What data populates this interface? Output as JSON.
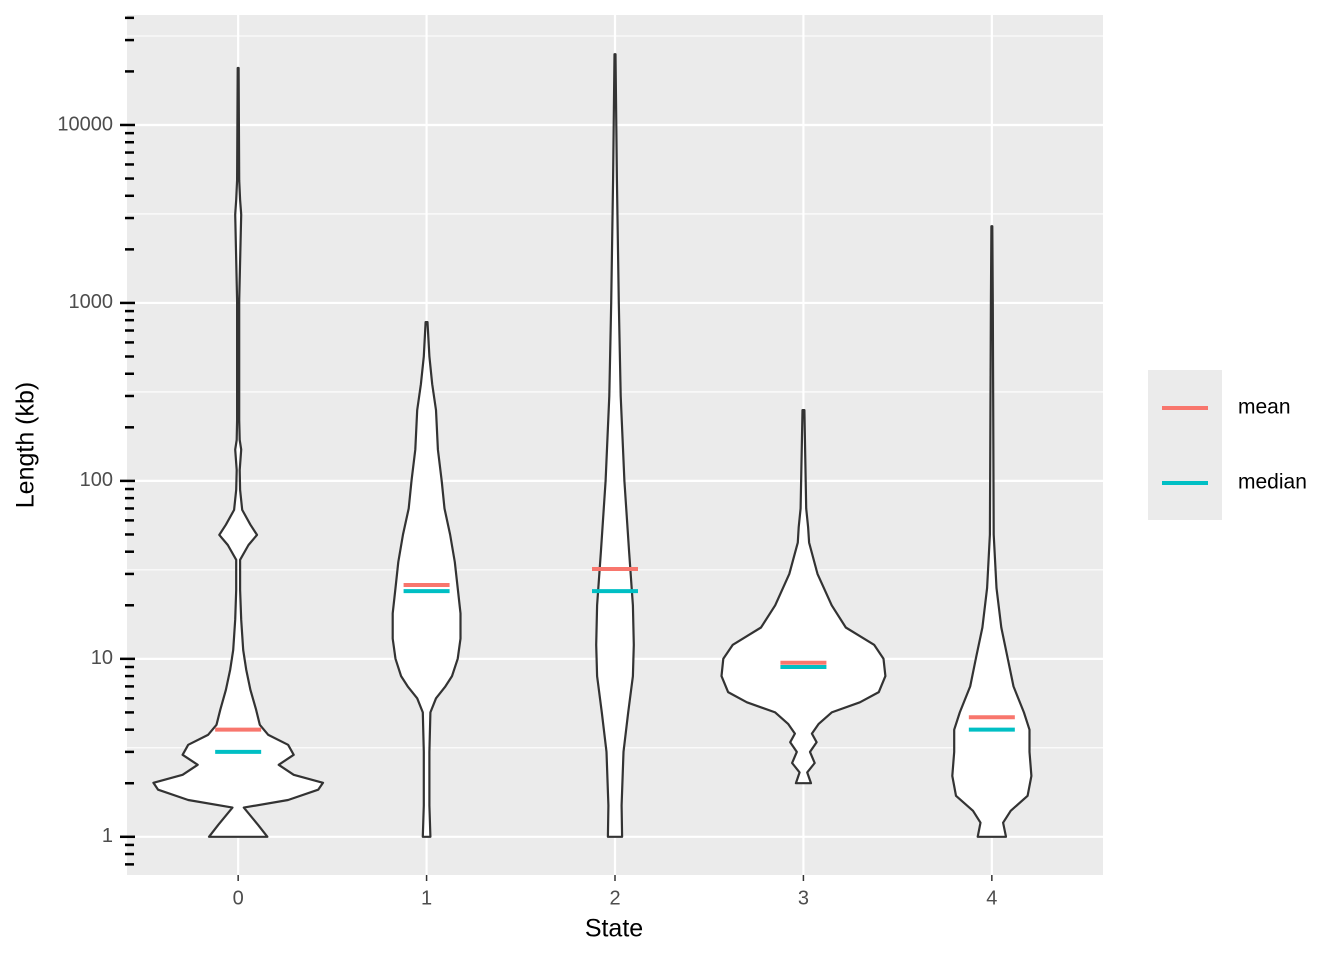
{
  "chart_data": {
    "type": "violin",
    "x_label": "State",
    "y_label": "Length (kb)",
    "log_y": true,
    "grid": true,
    "legend_position": "right",
    "ylim": [
      0.61,
      41500
    ],
    "yticks": [
      1,
      10,
      100,
      1000,
      10000
    ],
    "minor_yticks": [
      0.7,
      0.8,
      0.9,
      2,
      3,
      4,
      5,
      6,
      7,
      8,
      9,
      20,
      30,
      40,
      50,
      60,
      70,
      80,
      90,
      200,
      300,
      400,
      500,
      600,
      700,
      800,
      900,
      2000,
      3000,
      4000,
      5000,
      6000,
      7000,
      8000,
      9000,
      20000,
      30000,
      40000
    ],
    "categories": [
      "0",
      "1",
      "2",
      "3",
      "4"
    ],
    "legend": [
      {
        "name": "mean",
        "color": "#f8766d"
      },
      {
        "name": "median",
        "color": "#00bfc4"
      }
    ],
    "violins": [
      {
        "values": [
          1,
          1.17,
          1.46,
          1.61,
          1.84,
          2.01,
          2.23,
          2.54,
          2.89,
          3.29,
          3.74,
          4.26,
          5.18,
          6.7,
          8.7,
          11.2,
          16.6,
          24.4,
          36,
          43.6,
          49.7,
          56.7,
          68.7,
          89,
          115,
          150,
          170,
          220,
          1030,
          3140,
          3800,
          4900,
          20900
        ],
        "widths": [
          0.31,
          0.21,
          0.06,
          0.53,
          0.85,
          0.9,
          0.59,
          0.43,
          0.59,
          0.53,
          0.32,
          0.23,
          0.19,
          0.13,
          0.085,
          0.053,
          0.032,
          0.021,
          0.021,
          0.11,
          0.2,
          0.13,
          0.043,
          0.021,
          0.016,
          0.032,
          0.016,
          0.011,
          0.011,
          0.032,
          0.021,
          0.011,
          0.005
        ],
        "mean": 4.0,
        "median": 3.0
      },
      {
        "values": [
          1,
          1.5,
          3,
          5,
          6,
          7,
          8,
          10,
          13,
          18,
          25,
          35,
          50,
          70,
          100,
          150,
          250,
          350,
          500,
          780
        ],
        "widths": [
          0.04,
          0.03,
          0.03,
          0.04,
          0.1,
          0.2,
          0.27,
          0.33,
          0.36,
          0.36,
          0.33,
          0.3,
          0.25,
          0.19,
          0.16,
          0.12,
          0.1,
          0.06,
          0.03,
          0.01
        ],
        "mean": 26,
        "median": 24
      },
      {
        "values": [
          1,
          1.5,
          3,
          5,
          8,
          12,
          20,
          40,
          100,
          300,
          1000,
          5000,
          25000
        ],
        "widths": [
          0.075,
          0.07,
          0.09,
          0.14,
          0.19,
          0.2,
          0.19,
          0.15,
          0.1,
          0.06,
          0.04,
          0.02,
          0.005
        ],
        "mean": 32,
        "median": 24
      },
      {
        "values": [
          2.0,
          2.3,
          2.6,
          3.0,
          3.4,
          3.8,
          4.3,
          5,
          5.7,
          6.5,
          8,
          10,
          12,
          15,
          20,
          30,
          45,
          55,
          70,
          250
        ],
        "widths": [
          0.08,
          0.04,
          0.12,
          0.07,
          0.14,
          0.09,
          0.16,
          0.3,
          0.6,
          0.8,
          0.87,
          0.85,
          0.75,
          0.45,
          0.3,
          0.15,
          0.06,
          0.05,
          0.03,
          0.01
        ],
        "mean": 9.5,
        "median": 9.0
      },
      {
        "values": [
          1,
          1.2,
          1.4,
          1.7,
          2.2,
          3,
          4,
          5,
          7,
          10,
          15,
          25,
          50,
          1000,
          2700
        ],
        "widths": [
          0.15,
          0.12,
          0.2,
          0.38,
          0.42,
          0.4,
          0.4,
          0.34,
          0.23,
          0.17,
          0.1,
          0.05,
          0.02,
          0.01,
          0.005
        ],
        "mean": 4.7,
        "median": 4.0
      }
    ]
  }
}
